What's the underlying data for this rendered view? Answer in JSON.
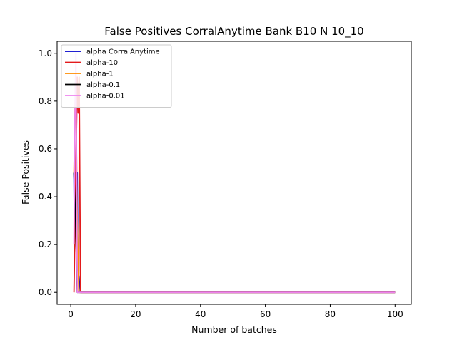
{
  "chart_data": {
    "type": "line",
    "title": "False Positives CorralAnytime Bank B10 N 10_10",
    "xlabel": "Number of batches",
    "ylabel": "False Positives",
    "xlim": [
      -4.2,
      105
    ],
    "ylim": [
      -0.05,
      1.05
    ],
    "x_ticks": [
      0,
      20,
      40,
      60,
      80,
      100
    ],
    "x_tick_labels": [
      "0",
      "20",
      "40",
      "60",
      "80",
      "100"
    ],
    "y_ticks": [
      0.0,
      0.2,
      0.4,
      0.6,
      0.8,
      1.0
    ],
    "y_tick_labels": [
      "0.0",
      "0.2",
      "0.4",
      "0.6",
      "0.8",
      "1.0"
    ],
    "grid": false,
    "legend_position": "top-left",
    "series": [
      {
        "name": "alpha CorralAnytime",
        "color": "#0000cc",
        "x": [
          1,
          1.1,
          1.2,
          2,
          2.2,
          3,
          100
        ],
        "y": [
          0.5,
          0.3,
          0.5,
          0.5,
          0.1,
          0.0,
          0.0
        ]
      },
      {
        "name": "alpha-10",
        "color": "#e31a1c",
        "x": [
          1,
          2,
          2.3,
          2.6,
          3,
          100
        ],
        "y": [
          0.0,
          0.9,
          0.75,
          0.9,
          0.0,
          0.0
        ]
      },
      {
        "name": "alpha-1",
        "color": "#ff8c00",
        "x": [
          1,
          1.5,
          2,
          2.5,
          100
        ],
        "y": [
          0.5,
          0.9,
          0.3,
          0.0,
          0.0
        ]
      },
      {
        "name": "alpha-0.1",
        "color": "#000000",
        "x": [
          1,
          1.5,
          2,
          100
        ],
        "y": [
          0.5,
          0.3,
          0.0,
          0.0
        ]
      },
      {
        "name": "alpha-0.01",
        "color": "#ee82ee",
        "x": [
          1,
          1.3,
          1.6,
          2,
          100
        ],
        "y": [
          0.2,
          0.75,
          1.0,
          0.0,
          0.0
        ]
      }
    ]
  }
}
